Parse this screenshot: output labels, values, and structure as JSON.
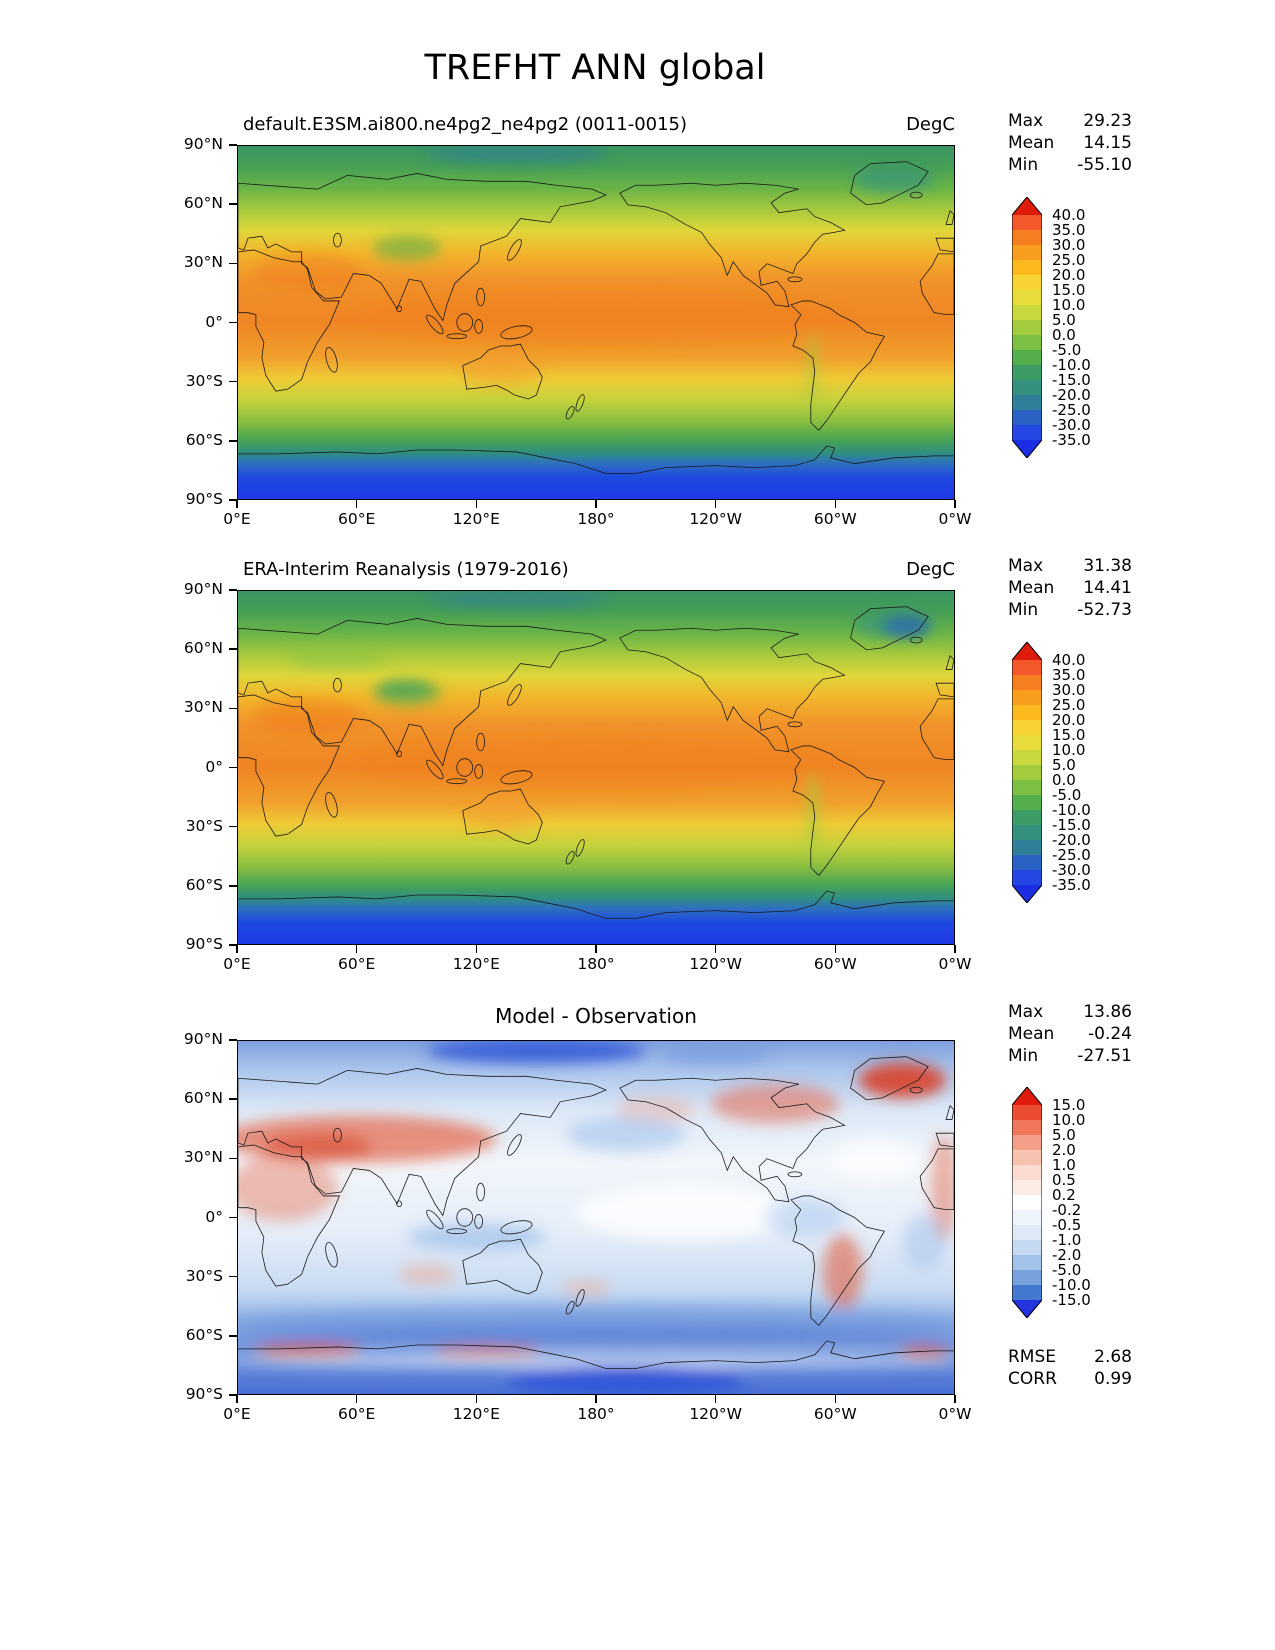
{
  "title": "TREFHT ANN global",
  "panels": [
    {
      "id": "model",
      "title": "default.E3SM.ai800.ne4pg2_ne4pg2 (0011-0015)",
      "units": "DegC",
      "stats": [
        {
          "label": "Max",
          "value": "29.23"
        },
        {
          "label": "Mean",
          "value": "14.15"
        },
        {
          "label": "Min",
          "value": "-55.10"
        }
      ],
      "colorbar": {
        "levels": [
          "40.0",
          "35.0",
          "30.0",
          "25.0",
          "20.0",
          "15.0",
          "10.0",
          "5.0",
          "0.0",
          "-5.0",
          "-10.0",
          "-15.0",
          "-20.0",
          "-25.0",
          "-30.0",
          "-35.0"
        ],
        "band_colors": [
          "#f3582b",
          "#f57e20",
          "#f89d1d",
          "#fbb91e",
          "#f7d335",
          "#e8dc3c",
          "#c8d83d",
          "#a2cc3e",
          "#7cc043",
          "#54ae4b",
          "#3d9c66",
          "#35917e",
          "#2f7f98",
          "#2a62c4",
          "#2446e2"
        ],
        "arrow_top": "#dd1c0c",
        "arrow_bottom": "#1b2ee4"
      },
      "y_ticks": [
        "90°N",
        "60°N",
        "30°N",
        "0°",
        "30°S",
        "60°S",
        "90°S"
      ],
      "x_ticks": [
        "0°E",
        "60°E",
        "120°E",
        "180°",
        "120°W",
        "60°W",
        "0°W"
      ]
    },
    {
      "id": "obs",
      "title": "ERA-Interim Reanalysis (1979-2016)",
      "units": "DegC",
      "stats": [
        {
          "label": "Max",
          "value": "31.38"
        },
        {
          "label": "Mean",
          "value": "14.41"
        },
        {
          "label": "Min",
          "value": "-52.73"
        }
      ],
      "colorbar": {
        "levels": [
          "40.0",
          "35.0",
          "30.0",
          "25.0",
          "20.0",
          "15.0",
          "10.0",
          "5.0",
          "0.0",
          "-5.0",
          "-10.0",
          "-15.0",
          "-20.0",
          "-25.0",
          "-30.0",
          "-35.0"
        ],
        "band_colors": [
          "#f3582b",
          "#f57e20",
          "#f89d1d",
          "#fbb91e",
          "#f7d335",
          "#e8dc3c",
          "#c8d83d",
          "#a2cc3e",
          "#7cc043",
          "#54ae4b",
          "#3d9c66",
          "#35917e",
          "#2f7f98",
          "#2a62c4",
          "#2446e2"
        ],
        "arrow_top": "#dd1c0c",
        "arrow_bottom": "#1b2ee4"
      },
      "y_ticks": [
        "90°N",
        "60°N",
        "30°N",
        "0°",
        "30°S",
        "60°S",
        "90°S"
      ],
      "x_ticks": [
        "0°E",
        "60°E",
        "120°E",
        "180°",
        "120°W",
        "60°W",
        "0°W"
      ]
    },
    {
      "id": "diff",
      "title": "Model - Observation",
      "stats": [
        {
          "label": "Max",
          "value": "13.86"
        },
        {
          "label": "Mean",
          "value": "-0.24"
        },
        {
          "label": "Min",
          "value": "-27.51"
        }
      ],
      "extra_stats": [
        {
          "label": "RMSE",
          "value": "2.68"
        },
        {
          "label": "CORR",
          "value": "0.99"
        }
      ],
      "colorbar": {
        "levels": [
          "15.0",
          "10.0",
          "5.0",
          "2.0",
          "1.0",
          "0.5",
          "0.2",
          "-0.2",
          "-0.5",
          "-1.0",
          "-2.0",
          "-5.0",
          "-10.0",
          "-15.0"
        ],
        "band_colors": [
          "#ec4c31",
          "#f0775b",
          "#f49f87",
          "#f8c2b1",
          "#fbdad0",
          "#fdece6",
          "#ffffff",
          "#eef4fb",
          "#dee9f7",
          "#c6d9f2",
          "#a3c2ea",
          "#77a2de",
          "#4478cf"
        ],
        "arrow_top": "#e01b0c",
        "arrow_bottom": "#2433de"
      },
      "y_ticks": [
        "90°N",
        "60°N",
        "30°N",
        "0°",
        "30°S",
        "60°S",
        "90°S"
      ],
      "x_ticks": [
        "0°E",
        "60°E",
        "120°E",
        "180°",
        "120°W",
        "60°W",
        "0°W"
      ]
    }
  ],
  "chart_data": {
    "type": "heatmap",
    "variable": "TREFHT",
    "statistic": "ANN",
    "region": "global",
    "units": "DegC",
    "projection": "equirectangular",
    "lon_range": [
      0,
      360
    ],
    "lat_range": [
      -90,
      90
    ],
    "panels": [
      {
        "title": "default.E3SM.ai800.ne4pg2_ne4pg2 (0011-0015)",
        "max": 29.23,
        "mean": 14.15,
        "min": -55.1,
        "contour_levels": [
          -35,
          -30,
          -25,
          -20,
          -15,
          -10,
          -5,
          0,
          5,
          10,
          15,
          20,
          25,
          30,
          35,
          40
        ]
      },
      {
        "title": "ERA-Interim Reanalysis (1979-2016)",
        "max": 31.38,
        "mean": 14.41,
        "min": -52.73,
        "contour_levels": [
          -35,
          -30,
          -25,
          -20,
          -15,
          -10,
          -5,
          0,
          5,
          10,
          15,
          20,
          25,
          30,
          35,
          40
        ]
      },
      {
        "title": "Model - Observation",
        "max": 13.86,
        "mean": -0.24,
        "min": -27.51,
        "rmse": 2.68,
        "corr": 0.99,
        "contour_levels": [
          -15,
          -10,
          -5,
          -2,
          -1,
          -0.5,
          -0.2,
          0.2,
          0.5,
          1,
          2,
          5,
          10,
          15
        ]
      }
    ],
    "x_ticks": [
      "0°E",
      "60°E",
      "120°E",
      "180°",
      "120°W",
      "60°W",
      "0°W"
    ],
    "y_ticks": [
      "90°N",
      "60°N",
      "30°N",
      "0°",
      "30°S",
      "60°S",
      "90°S"
    ]
  }
}
